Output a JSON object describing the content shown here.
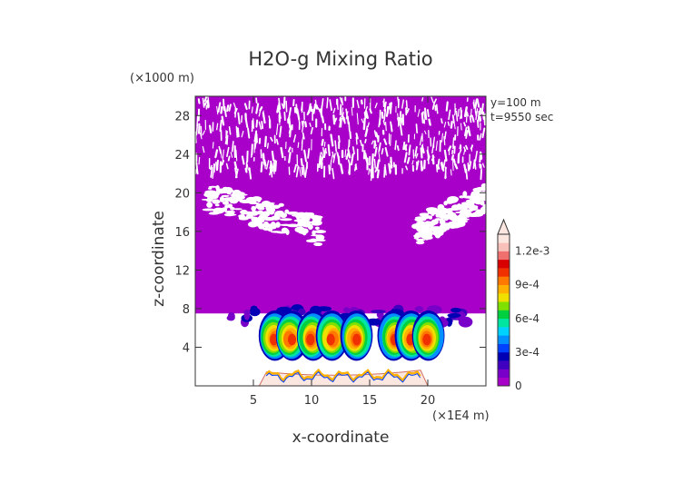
{
  "chart_data": {
    "type": "heatmap",
    "title": "H2O-g Mixing Ratio",
    "xlabel": "x-coordinate",
    "ylabel": "z-coordinate",
    "x_unit": "(×1E4 m)",
    "y_unit": "(×1000 m)",
    "annotations": [
      "y=100 m",
      "t=9550 sec"
    ],
    "xlim": [
      0,
      25
    ],
    "ylim": [
      0,
      30
    ],
    "x_ticks": [
      5,
      10,
      15,
      20
    ],
    "y_ticks": [
      4,
      8,
      12,
      16,
      20,
      24,
      28
    ],
    "colorbar": {
      "min": 0,
      "max": 0.00135,
      "extend": "max",
      "tick_values": [
        0,
        0.0003,
        0.0006,
        0.0009,
        0.0012
      ],
      "tick_labels": [
        "0",
        "3e-4",
        "6e-4",
        "9e-4",
        "1.2e-3"
      ],
      "colors": [
        "#a800c8",
        "#7800c8",
        "#4000c0",
        "#0000b4",
        "#0040ff",
        "#0090ff",
        "#00d2ff",
        "#00e6a0",
        "#00d040",
        "#80e000",
        "#f0e000",
        "#ffb000",
        "#ff7800",
        "#f03000",
        "#d80000",
        "#f07070",
        "#f8c0b8",
        "#fce6e0"
      ]
    },
    "regions": {
      "dense_vapor_band": {
        "x_range": [
          0,
          25
        ],
        "z_range": [
          7.5,
          28.5
        ],
        "value_level": 0
      },
      "upper_streaks_top": {
        "z_range": [
          22,
          30
        ]
      },
      "clear_patches": [
        {
          "x_range": [
            1,
            11
          ],
          "z_range": [
            15,
            21
          ]
        },
        {
          "x_range": [
            19,
            25
          ],
          "z_range": [
            15,
            21
          ]
        }
      ],
      "cloud_band": {
        "x_range": [
          3,
          23.5
        ],
        "z_range": [
          2.5,
          8
        ],
        "peak_value": 0.0012
      },
      "terrain_ridge": {
        "x_range": [
          5.5,
          20
        ],
        "z_max": 2
      }
    }
  }
}
